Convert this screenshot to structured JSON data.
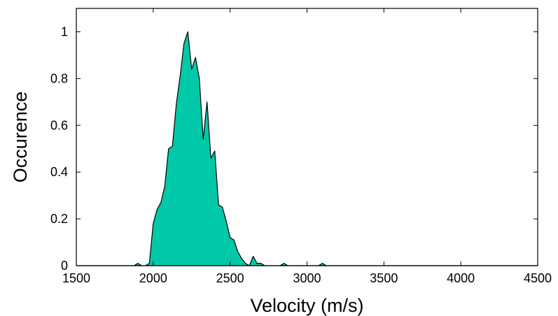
{
  "chart_data": {
    "type": "area",
    "title": "",
    "xlabel": "Velocity (m/s)",
    "ylabel": "Occurence",
    "xlim": [
      1500,
      4500
    ],
    "ylim": [
      0,
      1.1
    ],
    "xticks": [
      1500,
      2000,
      2500,
      3000,
      3500,
      4000,
      4500
    ],
    "xtick_labels": [
      "1500",
      "2000",
      "2500",
      "3000",
      "3500",
      "4000",
      "4500"
    ],
    "yticks": [
      0,
      0.2,
      0.4,
      0.6,
      0.8,
      1
    ],
    "ytick_labels": [
      "0",
      "0.2",
      "0.4",
      "0.6",
      "0.8",
      "1"
    ],
    "grid": false,
    "legend": "none",
    "fill_color": "#00c8a8",
    "line_color": "#000000",
    "series": [
      {
        "x": [
          1500,
          1875,
          1900,
          1925,
          1950,
          1975,
          2000,
          2025,
          2050,
          2075,
          2100,
          2125,
          2150,
          2175,
          2200,
          2225,
          2250,
          2275,
          2300,
          2325,
          2350,
          2375,
          2400,
          2425,
          2450,
          2475,
          2500,
          2525,
          2550,
          2575,
          2600,
          2625,
          2650,
          2675,
          2700,
          2725,
          2750,
          2775,
          2800,
          2825,
          2850,
          2875,
          2900,
          2925,
          2950,
          2975,
          3000,
          3025,
          3050,
          3075,
          3100,
          3125,
          3150,
          3175,
          3200,
          3225,
          3250,
          3275,
          3300,
          3325,
          3350,
          3375,
          3400,
          3425,
          3450,
          3475,
          3500,
          3525,
          3550,
          3575,
          3600,
          3625,
          3650,
          3675,
          3700,
          3725,
          3750,
          3775,
          3800,
          3825,
          3850,
          3875,
          3900,
          3925,
          3950,
          3975,
          4000,
          4025,
          4050,
          4075,
          4100,
          4125,
          4150,
          4500
        ],
        "y": [
          0,
          0,
          0.01,
          0,
          0,
          0.01,
          0.18,
          0.24,
          0.27,
          0.34,
          0.5,
          0.51,
          0.69,
          0.81,
          0.95,
          1.0,
          0.84,
          0.89,
          0.8,
          0.54,
          0.7,
          0.46,
          0.49,
          0.26,
          0.25,
          0.19,
          0.12,
          0.11,
          0.06,
          0.03,
          0.01,
          0.0,
          0.04,
          0.01,
          0.01,
          0,
          0,
          0,
          0,
          0,
          0.01,
          0,
          0,
          0,
          0,
          0,
          0,
          0,
          0,
          0,
          0.01,
          0,
          0,
          0,
          0,
          0,
          0,
          0,
          0,
          0,
          0,
          0,
          0,
          0,
          0,
          0,
          0,
          0,
          0,
          0,
          0,
          0,
          0,
          0,
          0,
          0,
          0,
          0,
          0,
          0,
          0,
          0,
          0,
          0,
          0,
          0,
          0,
          0,
          0,
          0,
          0,
          0,
          0,
          0
        ]
      }
    ]
  }
}
